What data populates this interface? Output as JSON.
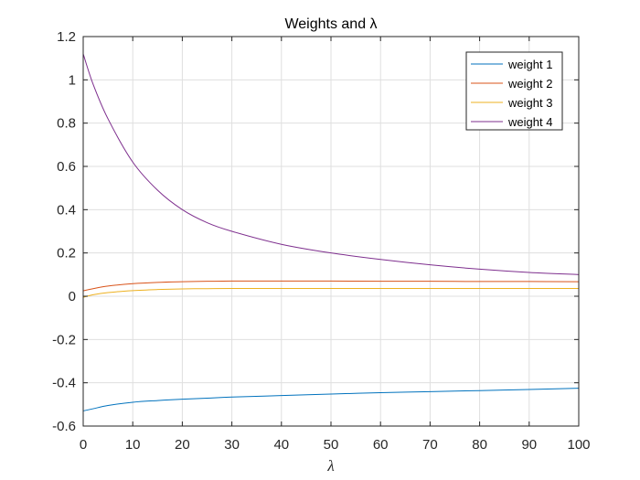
{
  "chart_data": {
    "type": "line",
    "title": "Weights and λ",
    "xlabel": "λ",
    "ylabel": "",
    "xlim": [
      0,
      100
    ],
    "ylim": [
      -0.6,
      1.2
    ],
    "xticks": [
      0,
      10,
      20,
      30,
      40,
      50,
      60,
      70,
      80,
      90,
      100
    ],
    "yticks": [
      -0.6,
      -0.4,
      -0.2,
      0,
      0.2,
      0.4,
      0.6,
      0.8,
      1,
      1.2
    ],
    "xtick_labels": [
      "0",
      "10",
      "20",
      "30",
      "40",
      "50",
      "60",
      "70",
      "80",
      "90",
      "100"
    ],
    "ytick_labels": [
      "-0.6",
      "-0.4",
      "-0.2",
      "0",
      "0.2",
      "0.4",
      "0.6",
      "0.8",
      "1",
      "1.2"
    ],
    "grid": true,
    "legend_position": "top-right",
    "x": [
      0,
      2,
      5,
      10,
      15,
      20,
      25,
      30,
      40,
      50,
      60,
      70,
      80,
      90,
      100
    ],
    "series": [
      {
        "name": "weight 1",
        "color": "#0072BD",
        "values": [
          -0.53,
          -0.52,
          -0.505,
          -0.49,
          -0.482,
          -0.476,
          -0.471,
          -0.466,
          -0.459,
          -0.452,
          -0.446,
          -0.441,
          -0.436,
          -0.431,
          -0.425
        ]
      },
      {
        "name": "weight 2",
        "color": "#D95319",
        "values": [
          0.025,
          0.035,
          0.047,
          0.058,
          0.064,
          0.067,
          0.069,
          0.07,
          0.07,
          0.07,
          0.069,
          0.069,
          0.068,
          0.068,
          0.067
        ]
      },
      {
        "name": "weight 3",
        "color": "#EDB120",
        "values": [
          -0.005,
          0.007,
          0.017,
          0.026,
          0.031,
          0.034,
          0.035,
          0.036,
          0.036,
          0.036,
          0.036,
          0.036,
          0.036,
          0.036,
          0.036
        ]
      },
      {
        "name": "weight 4",
        "color": "#7E2F8E",
        "values": [
          1.12,
          0.98,
          0.82,
          0.62,
          0.49,
          0.4,
          0.34,
          0.3,
          0.24,
          0.2,
          0.17,
          0.145,
          0.125,
          0.11,
          0.1
        ]
      }
    ]
  }
}
